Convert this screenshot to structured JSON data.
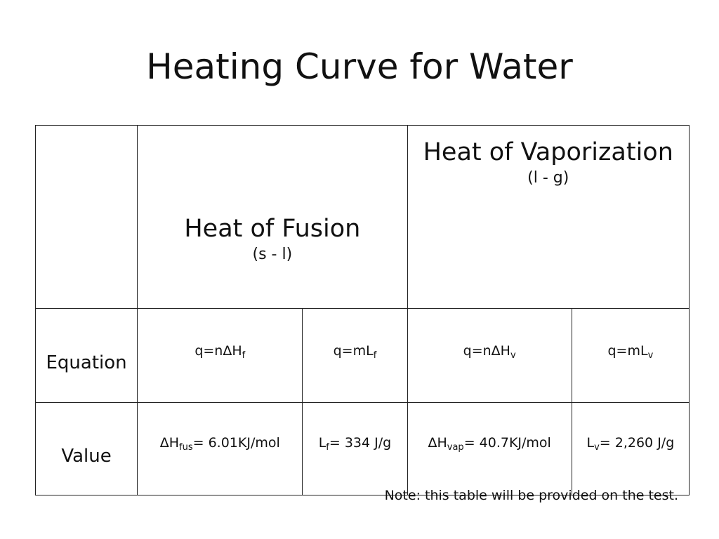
{
  "title": "Heating Curve for Water",
  "table": {
    "headers": {
      "fusion": {
        "label": "Heat of Fusion",
        "sub": "(s - l)"
      },
      "vaporization": {
        "label": "Heat of Vaporization",
        "sub": "(l - g)"
      }
    },
    "equation_row": {
      "label": "Equation",
      "cells": [
        {
          "base": "q=nΔH",
          "sub": "f"
        },
        {
          "base": "q=mL",
          "sub": "f"
        },
        {
          "base": "q=nΔH",
          "sub": "v"
        },
        {
          "base": "q=mL",
          "sub": "v"
        }
      ]
    },
    "value_row": {
      "label": "Value",
      "cells": [
        {
          "base": "ΔH",
          "sub": "fus",
          "rest": "= 6.01KJ/mol"
        },
        {
          "base": "L",
          "sub": "f",
          "rest": "= 334 J/g"
        },
        {
          "base": "ΔH",
          "sub": "vap",
          "rest": "= 40.7KJ/mol"
        },
        {
          "base": "L",
          "sub": "v",
          "rest": "= 2,260 J/g"
        }
      ]
    }
  },
  "note": "Note: this table will be provided on the test."
}
